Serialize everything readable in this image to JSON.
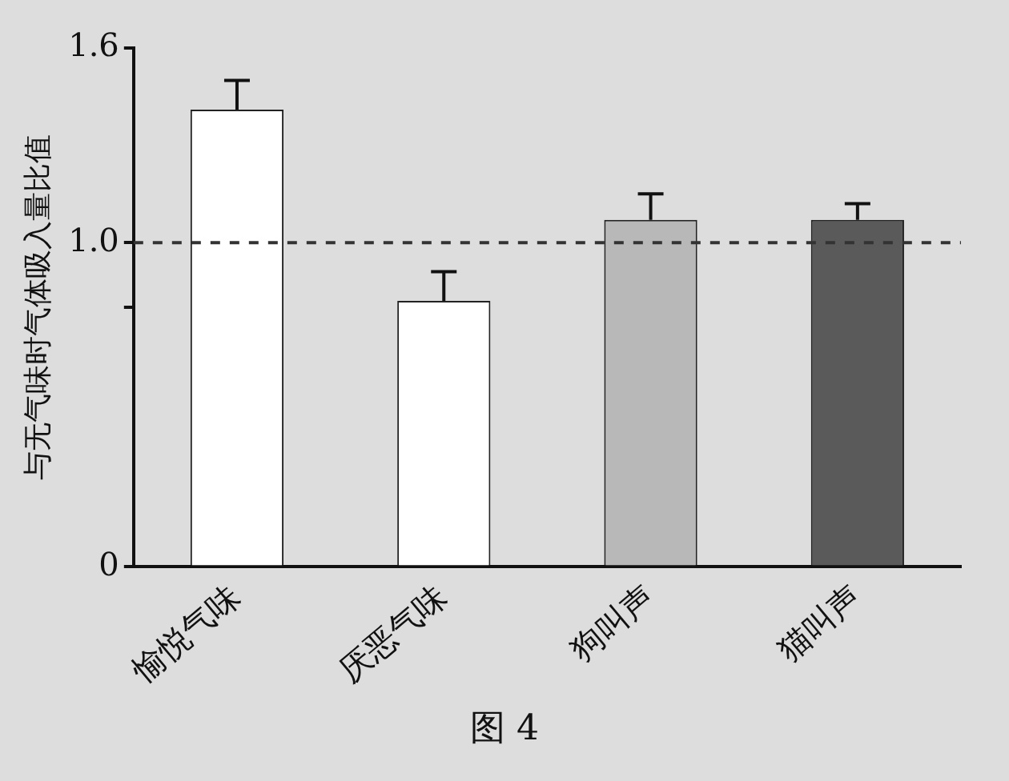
{
  "chart_data": {
    "type": "bar",
    "ylabel": "与无气味时气体吸入量比值",
    "categories": [
      "愉悦气味",
      "厌恶气味",
      "狗叫声",
      "猫叫声"
    ],
    "values": [
      1.41,
      0.82,
      1.07,
      1.07
    ],
    "errors": [
      0.09,
      0.09,
      0.08,
      0.05
    ],
    "colors": [
      "#ffffff",
      "#ffffff",
      "#b8b8b8",
      "#5a5a5a"
    ],
    "ylim": [
      0,
      1.6
    ],
    "yticks": [
      0,
      {
        "value": 0.8,
        "label": null
      },
      {
        "value": 1,
        "label": "1.0"
      },
      1.6
    ],
    "ref_lines": [
      {
        "axis": "y",
        "value": 1,
        "line_style": "dashed",
        "color": "#333333"
      }
    ],
    "grid": false,
    "legend": false,
    "annotations": [
      "图 4"
    ]
  }
}
